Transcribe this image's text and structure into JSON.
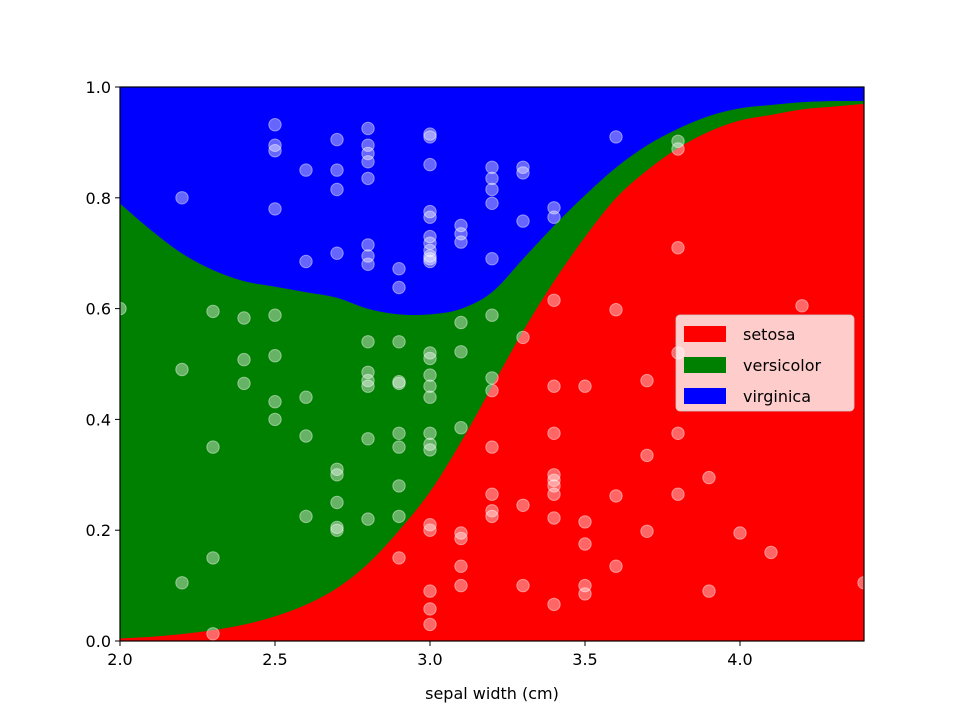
{
  "chart_data": {
    "type": "area",
    "stacked": true,
    "xlabel": "sepal width (cm)",
    "ylabel": "",
    "xlim": [
      2.0,
      4.4
    ],
    "ylim": [
      0.0,
      1.0
    ],
    "xticks": [
      "2.0",
      "2.5",
      "3.0",
      "3.5",
      "4.0"
    ],
    "xtick_values": [
      2.0,
      2.5,
      3.0,
      3.5,
      4.0
    ],
    "yticks": [
      "0.0",
      "0.2",
      "0.4",
      "0.6",
      "0.8",
      "1.0"
    ],
    "ytick_values": [
      0.0,
      0.2,
      0.4,
      0.6,
      0.8,
      1.0
    ],
    "grid": false,
    "legend_position": "center-right",
    "x": [
      2.0,
      2.1,
      2.2,
      2.3,
      2.4,
      2.5,
      2.6,
      2.7,
      2.8,
      2.9,
      3.0,
      3.1,
      3.2,
      3.3,
      3.4,
      3.5,
      3.6,
      3.7,
      3.8,
      3.9,
      4.0,
      4.1,
      4.2,
      4.3,
      4.4
    ],
    "series": [
      {
        "name": "setosa",
        "color": "#ff0000",
        "values": [
          0.005,
          0.008,
          0.013,
          0.02,
          0.03,
          0.045,
          0.066,
          0.096,
          0.14,
          0.2,
          0.27,
          0.36,
          0.46,
          0.56,
          0.65,
          0.73,
          0.8,
          0.85,
          0.89,
          0.92,
          0.94,
          0.95,
          0.96,
          0.965,
          0.97
        ]
      },
      {
        "name": "versicolor",
        "color": "#008000",
        "values": [
          0.785,
          0.734,
          0.687,
          0.65,
          0.62,
          0.595,
          0.564,
          0.524,
          0.46,
          0.39,
          0.32,
          0.24,
          0.17,
          0.13,
          0.1,
          0.075,
          0.055,
          0.045,
          0.035,
          0.028,
          0.022,
          0.018,
          0.013,
          0.01,
          0.005
        ]
      },
      {
        "name": "virginica",
        "color": "#0000ff",
        "values": [
          0.21,
          0.258,
          0.3,
          0.33,
          0.35,
          0.36,
          0.37,
          0.38,
          0.4,
          0.41,
          0.41,
          0.4,
          0.37,
          0.31,
          0.25,
          0.195,
          0.145,
          0.105,
          0.075,
          0.052,
          0.038,
          0.032,
          0.027,
          0.025,
          0.025
        ]
      }
    ],
    "scatter": {
      "color": "#ffffff",
      "points": [
        [
          2.0,
          0.6
        ],
        [
          2.2,
          0.8
        ],
        [
          2.2,
          0.49
        ],
        [
          2.2,
          0.105
        ],
        [
          2.3,
          0.595
        ],
        [
          2.3,
          0.35
        ],
        [
          2.3,
          0.15
        ],
        [
          2.3,
          0.013
        ],
        [
          2.4,
          0.583
        ],
        [
          2.4,
          0.508
        ],
        [
          2.4,
          0.465
        ],
        [
          2.5,
          0.932
        ],
        [
          2.5,
          0.895
        ],
        [
          2.5,
          0.885
        ],
        [
          2.5,
          0.78
        ],
        [
          2.5,
          0.588
        ],
        [
          2.5,
          0.515
        ],
        [
          2.5,
          0.432
        ],
        [
          2.5,
          0.4
        ],
        [
          2.6,
          0.85
        ],
        [
          2.6,
          0.685
        ],
        [
          2.6,
          0.44
        ],
        [
          2.6,
          0.37
        ],
        [
          2.6,
          0.225
        ],
        [
          2.7,
          0.905
        ],
        [
          2.7,
          0.85
        ],
        [
          2.7,
          0.815
        ],
        [
          2.7,
          0.7
        ],
        [
          2.7,
          0.31
        ],
        [
          2.7,
          0.3
        ],
        [
          2.7,
          0.25
        ],
        [
          2.7,
          0.205
        ],
        [
          2.7,
          0.2
        ],
        [
          2.8,
          0.925
        ],
        [
          2.8,
          0.895
        ],
        [
          2.8,
          0.88
        ],
        [
          2.8,
          0.865
        ],
        [
          2.8,
          0.835
        ],
        [
          2.8,
          0.715
        ],
        [
          2.8,
          0.695
        ],
        [
          2.8,
          0.68
        ],
        [
          2.8,
          0.54
        ],
        [
          2.8,
          0.485
        ],
        [
          2.8,
          0.47
        ],
        [
          2.8,
          0.46
        ],
        [
          2.8,
          0.365
        ],
        [
          2.8,
          0.22
        ],
        [
          2.9,
          0.672
        ],
        [
          2.9,
          0.638
        ],
        [
          2.9,
          0.54
        ],
        [
          2.9,
          0.468
        ],
        [
          2.9,
          0.465
        ],
        [
          2.9,
          0.375
        ],
        [
          2.9,
          0.35
        ],
        [
          2.9,
          0.28
        ],
        [
          2.9,
          0.225
        ],
        [
          2.9,
          0.15
        ],
        [
          3.0,
          0.915
        ],
        [
          3.0,
          0.91
        ],
        [
          3.0,
          0.86
        ],
        [
          3.0,
          0.775
        ],
        [
          3.0,
          0.765
        ],
        [
          3.0,
          0.73
        ],
        [
          3.0,
          0.718
        ],
        [
          3.0,
          0.705
        ],
        [
          3.0,
          0.695
        ],
        [
          3.0,
          0.69
        ],
        [
          3.0,
          0.685
        ],
        [
          3.0,
          0.52
        ],
        [
          3.0,
          0.51
        ],
        [
          3.0,
          0.48
        ],
        [
          3.0,
          0.46
        ],
        [
          3.0,
          0.44
        ],
        [
          3.0,
          0.375
        ],
        [
          3.0,
          0.355
        ],
        [
          3.0,
          0.345
        ],
        [
          3.0,
          0.21
        ],
        [
          3.0,
          0.2
        ],
        [
          3.0,
          0.09
        ],
        [
          3.0,
          0.058
        ],
        [
          3.0,
          0.03
        ],
        [
          3.1,
          0.75
        ],
        [
          3.1,
          0.735
        ],
        [
          3.1,
          0.72
        ],
        [
          3.1,
          0.575
        ],
        [
          3.1,
          0.522
        ],
        [
          3.1,
          0.385
        ],
        [
          3.1,
          0.195
        ],
        [
          3.1,
          0.185
        ],
        [
          3.1,
          0.135
        ],
        [
          3.1,
          0.1
        ],
        [
          3.2,
          0.855
        ],
        [
          3.2,
          0.835
        ],
        [
          3.2,
          0.815
        ],
        [
          3.2,
          0.79
        ],
        [
          3.2,
          0.69
        ],
        [
          3.2,
          0.588
        ],
        [
          3.2,
          0.475
        ],
        [
          3.2,
          0.452
        ],
        [
          3.2,
          0.35
        ],
        [
          3.2,
          0.265
        ],
        [
          3.2,
          0.235
        ],
        [
          3.2,
          0.225
        ],
        [
          3.3,
          0.855
        ],
        [
          3.3,
          0.845
        ],
        [
          3.3,
          0.758
        ],
        [
          3.3,
          0.548
        ],
        [
          3.3,
          0.245
        ],
        [
          3.3,
          0.1
        ],
        [
          3.4,
          0.782
        ],
        [
          3.4,
          0.765
        ],
        [
          3.4,
          0.615
        ],
        [
          3.4,
          0.46
        ],
        [
          3.4,
          0.375
        ],
        [
          3.4,
          0.3
        ],
        [
          3.4,
          0.29
        ],
        [
          3.4,
          0.28
        ],
        [
          3.4,
          0.265
        ],
        [
          3.4,
          0.222
        ],
        [
          3.4,
          0.066
        ],
        [
          3.5,
          0.46
        ],
        [
          3.5,
          0.215
        ],
        [
          3.5,
          0.175
        ],
        [
          3.5,
          0.1
        ],
        [
          3.5,
          0.085
        ],
        [
          3.6,
          0.91
        ],
        [
          3.6,
          0.598
        ],
        [
          3.6,
          0.262
        ],
        [
          3.6,
          0.135
        ],
        [
          3.7,
          0.47
        ],
        [
          3.7,
          0.335
        ],
        [
          3.7,
          0.198
        ],
        [
          3.8,
          0.902
        ],
        [
          3.8,
          0.888
        ],
        [
          3.8,
          0.71
        ],
        [
          3.8,
          0.52
        ],
        [
          3.8,
          0.375
        ],
        [
          3.8,
          0.265
        ],
        [
          3.9,
          0.295
        ],
        [
          3.9,
          0.09
        ],
        [
          4.0,
          0.195
        ],
        [
          4.1,
          0.16
        ],
        [
          4.2,
          0.605
        ],
        [
          4.4,
          0.105
        ]
      ]
    }
  }
}
